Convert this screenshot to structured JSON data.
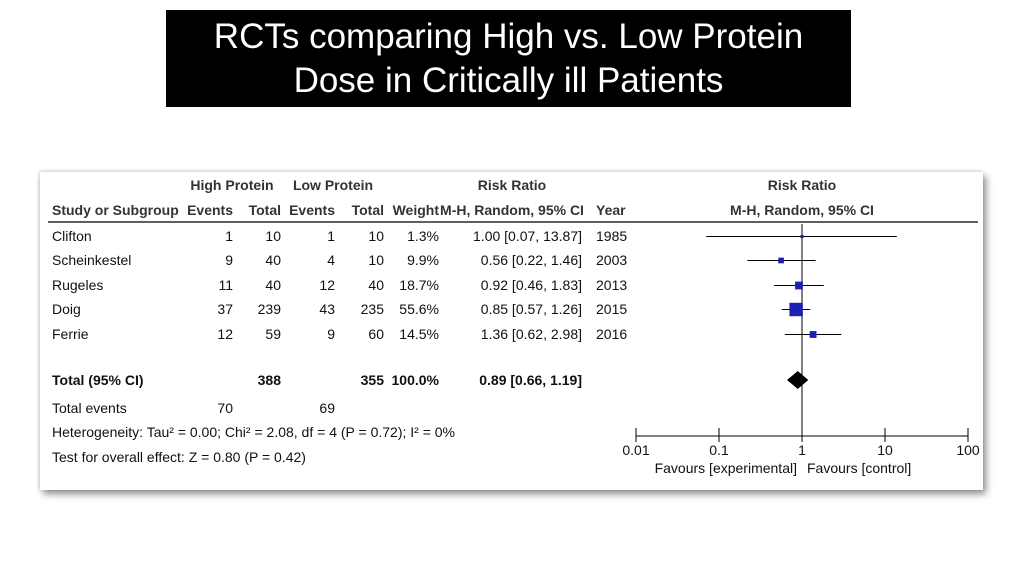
{
  "title": {
    "line1": "RCTs comparing High vs. Low Protein",
    "line2": "Dose in Critically ill Patients"
  },
  "chart_data": {
    "type": "forest",
    "headers": {
      "study": "Study or Subgroup",
      "group_exp": "High Protein",
      "group_ctrl": "Low Protein",
      "events": "Events",
      "total": "Total",
      "weight": "Weight",
      "rr_title": "Risk Ratio",
      "rr_method": "M-H, Random, 95% CI",
      "year": "Year",
      "plot_title": "Risk Ratio",
      "plot_method": "M-H, Random, 95% CI"
    },
    "studies": [
      {
        "name": "Clifton",
        "exp_events": "1",
        "exp_total": "10",
        "ctrl_events": "1",
        "ctrl_total": "10",
        "weight": "1.3%",
        "ci_text": "1.00 [0.07, 13.87]",
        "year": "1985",
        "rr": 1.0,
        "lo": 0.07,
        "hi": 13.87,
        "w": 1.3
      },
      {
        "name": "Scheinkestel",
        "exp_events": "9",
        "exp_total": "40",
        "ctrl_events": "4",
        "ctrl_total": "10",
        "weight": "9.9%",
        "ci_text": "0.56 [0.22, 1.46]",
        "year": "2003",
        "rr": 0.56,
        "lo": 0.22,
        "hi": 1.46,
        "w": 9.9
      },
      {
        "name": "Rugeles",
        "exp_events": "11",
        "exp_total": "40",
        "ctrl_events": "12",
        "ctrl_total": "40",
        "weight": "18.7%",
        "ci_text": "0.92 [0.46, 1.83]",
        "year": "2013",
        "rr": 0.92,
        "lo": 0.46,
        "hi": 1.83,
        "w": 18.7
      },
      {
        "name": "Doig",
        "exp_events": "37",
        "exp_total": "239",
        "ctrl_events": "43",
        "ctrl_total": "235",
        "weight": "55.6%",
        "ci_text": "0.85 [0.57, 1.26]",
        "year": "2015",
        "rr": 0.85,
        "lo": 0.57,
        "hi": 1.26,
        "w": 55.6
      },
      {
        "name": "Ferrie",
        "exp_events": "12",
        "exp_total": "59",
        "ctrl_events": "9",
        "ctrl_total": "60",
        "weight": "14.5%",
        "ci_text": "1.36 [0.62, 2.98]",
        "year": "2016",
        "rr": 1.36,
        "lo": 0.62,
        "hi": 2.98,
        "w": 14.5
      }
    ],
    "total": {
      "label": "Total (95% CI)",
      "exp_total": "388",
      "ctrl_total": "355",
      "weight": "100.0%",
      "ci_text": "0.89 [0.66, 1.19]",
      "rr": 0.89,
      "lo": 0.66,
      "hi": 1.19
    },
    "total_events": {
      "label": "Total events",
      "exp": "70",
      "ctrl": "69"
    },
    "heterogeneity": "Heterogeneity: Tau² = 0.00; Chi² = 2.08, df = 4 (P = 0.72); I² = 0%",
    "overall_effect": "Test for overall effect: Z = 0.80 (P = 0.42)",
    "x_axis": {
      "scale": "log",
      "ticks": [
        0.01,
        0.1,
        1,
        10,
        100
      ],
      "tick_labels": [
        "0.01",
        "0.1",
        "1",
        "10",
        "100"
      ]
    },
    "favours_left": "Favours [experimental]",
    "favours_right": "Favours [control]",
    "colors": {
      "marker": "#1f1fb4",
      "line": "#000000",
      "diamond": "#000000"
    }
  }
}
